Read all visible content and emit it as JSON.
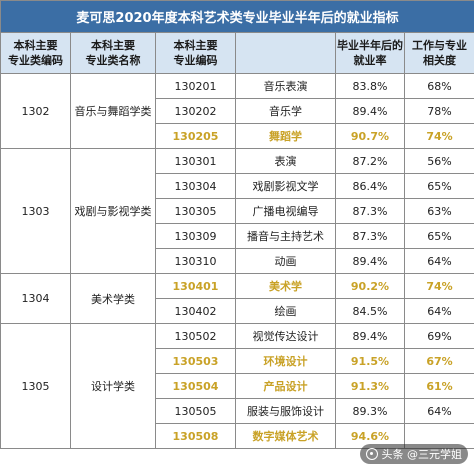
{
  "title": "麦可思2020年度本科艺术类专业毕业半年后的就业指标",
  "headers": {
    "major_class_code": "本科主要\n专业类编码",
    "major_class_name": "本科主要\n专业类名称",
    "major_code": "本科主要\n专业编码",
    "employment_rate": "毕业半年后的\n就业率",
    "relevance": "工作与专业\n相关度"
  },
  "groups": [
    {
      "class_code": "1302",
      "class_name": "音乐与舞蹈学类",
      "rows": [
        {
          "code": "130201",
          "name": "音乐表演",
          "rate": "83.8%",
          "relevance": "68%",
          "highlight": false
        },
        {
          "code": "130202",
          "name": "音乐学",
          "rate": "89.4%",
          "relevance": "78%",
          "highlight": false
        },
        {
          "code": "130205",
          "name": "舞蹈学",
          "rate": "90.7%",
          "relevance": "74%",
          "highlight": true
        }
      ]
    },
    {
      "class_code": "1303",
      "class_name": "戏剧与影视学类",
      "rows": [
        {
          "code": "130301",
          "name": "表演",
          "rate": "87.2%",
          "relevance": "56%",
          "highlight": false
        },
        {
          "code": "130304",
          "name": "戏剧影视文学",
          "rate": "86.4%",
          "relevance": "65%",
          "highlight": false
        },
        {
          "code": "130305",
          "name": "广播电视编导",
          "rate": "87.3%",
          "relevance": "63%",
          "highlight": false
        },
        {
          "code": "130309",
          "name": "播音与主持艺术",
          "rate": "87.3%",
          "relevance": "65%",
          "highlight": false
        },
        {
          "code": "130310",
          "name": "动画",
          "rate": "89.4%",
          "relevance": "64%",
          "highlight": false
        }
      ]
    },
    {
      "class_code": "1304",
      "class_name": "美术学类",
      "rows": [
        {
          "code": "130401",
          "name": "美术学",
          "rate": "90.2%",
          "relevance": "74%",
          "highlight": true
        },
        {
          "code": "130402",
          "name": "绘画",
          "rate": "84.5%",
          "relevance": "64%",
          "highlight": false
        }
      ]
    },
    {
      "class_code": "1305",
      "class_name": "设计学类",
      "rows": [
        {
          "code": "130502",
          "name": "视觉传达设计",
          "rate": "89.4%",
          "relevance": "69%",
          "highlight": false
        },
        {
          "code": "130503",
          "name": "环境设计",
          "rate": "91.5%",
          "relevance": "67%",
          "highlight": true
        },
        {
          "code": "130504",
          "name": "产品设计",
          "rate": "91.3%",
          "relevance": "61%",
          "highlight": true
        },
        {
          "code": "130505",
          "name": "服装与服饰设计",
          "rate": "89.3%",
          "relevance": "64%",
          "highlight": false
        },
        {
          "code": "130508",
          "name": "数字媒体艺术",
          "rate": "94.6%",
          "relevance": "",
          "highlight": true
        }
      ]
    }
  ],
  "colors": {
    "title_bg": "#3b6ea5",
    "header_bg": "#d6e4f2",
    "highlight_text": "#c9a227"
  },
  "watermark": "头条 @三元学姐"
}
